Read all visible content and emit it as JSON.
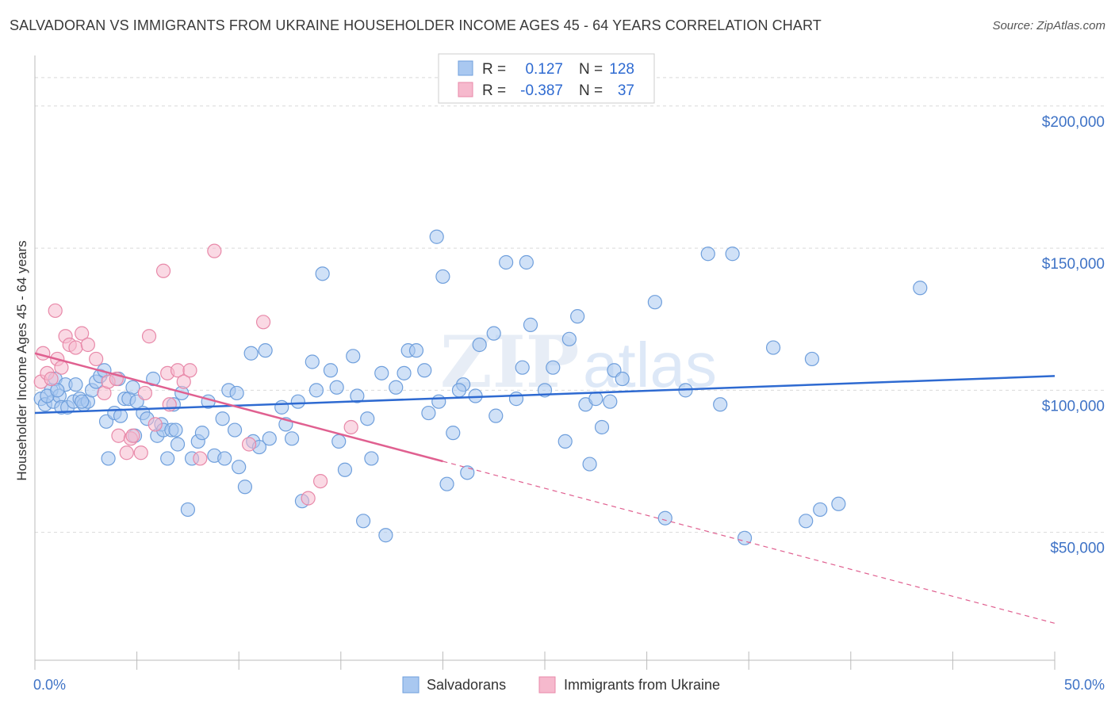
{
  "title": "SALVADORAN VS IMMIGRANTS FROM UKRAINE HOUSEHOLDER INCOME AGES 45 - 64 YEARS CORRELATION CHART",
  "source": "Source: ZipAtlas.com",
  "colors": {
    "blue_fill": "#a9c8f0",
    "blue_stroke": "#6f9fdc",
    "blue_line": "#2e6ad1",
    "pink_fill": "#f6b9cd",
    "pink_stroke": "#e889a9",
    "pink_line": "#e06090",
    "grid": "#d9d9d9",
    "tick_text": "#3f73c6"
  },
  "legend_box": {
    "rows": [
      {
        "r_label": "R =",
        "r_value": "0.127",
        "n_label": "N =",
        "n_value": "128",
        "color": "blue"
      },
      {
        "r_label": "R =",
        "r_value": "-0.387",
        "n_label": "N =",
        "n_value": "37",
        "color": "pink"
      }
    ]
  },
  "bottom_legend": [
    {
      "label": "Salvadorans",
      "color": "blue"
    },
    {
      "label": "Immigrants from Ukraine",
      "color": "pink"
    }
  ],
  "watermark": "ZIPatlas",
  "chart_data": {
    "type": "scatter",
    "ylabel": "Householder Income Ages 45 - 64 years",
    "xlim": [
      0,
      50
    ],
    "ylim": [
      5000,
      215000
    ],
    "x_tick_labels": [
      {
        "value": 0,
        "label": "0.0%"
      },
      {
        "value": 50,
        "label": "50.0%"
      }
    ],
    "y_ticks": [
      {
        "value": 50000,
        "label": "$50,000"
      },
      {
        "value": 100000,
        "label": "$100,000"
      },
      {
        "value": 150000,
        "label": "$150,000"
      },
      {
        "value": 200000,
        "label": "$200,000"
      }
    ],
    "grid": "horizontal dashed",
    "series": [
      {
        "name": "Salvadorans",
        "color": "blue",
        "trend": {
          "x0": 0,
          "y0": 92000,
          "x1": 50,
          "y1": 105000
        },
        "points": [
          [
            0.3,
            97000
          ],
          [
            0.5,
            95000
          ],
          [
            0.8,
            100000
          ],
          [
            0.9,
            96000
          ],
          [
            1.0,
            104000
          ],
          [
            1.2,
            98000
          ],
          [
            1.3,
            94000
          ],
          [
            1.5,
            102000
          ],
          [
            1.6,
            94000
          ],
          [
            1.9,
            96000
          ],
          [
            2.0,
            102000
          ],
          [
            2.2,
            97000
          ],
          [
            2.4,
            95000
          ],
          [
            2.6,
            96000
          ],
          [
            2.8,
            100000
          ],
          [
            3.0,
            103000
          ],
          [
            3.2,
            105000
          ],
          [
            3.4,
            107000
          ],
          [
            3.5,
            89000
          ],
          [
            3.6,
            76000
          ],
          [
            3.9,
            92000
          ],
          [
            4.1,
            104000
          ],
          [
            4.2,
            91000
          ],
          [
            4.4,
            97000
          ],
          [
            4.6,
            97000
          ],
          [
            4.8,
            101000
          ],
          [
            4.9,
            84000
          ],
          [
            5.0,
            96000
          ],
          [
            5.3,
            92000
          ],
          [
            5.5,
            90000
          ],
          [
            5.8,
            104000
          ],
          [
            6.0,
            84000
          ],
          [
            6.2,
            88000
          ],
          [
            6.3,
            86000
          ],
          [
            6.5,
            76000
          ],
          [
            6.7,
            86000
          ],
          [
            6.9,
            86000
          ],
          [
            7.0,
            81000
          ],
          [
            7.2,
            99000
          ],
          [
            7.5,
            58000
          ],
          [
            7.7,
            76000
          ],
          [
            8.0,
            82000
          ],
          [
            8.2,
            85000
          ],
          [
            8.5,
            96000
          ],
          [
            8.8,
            77000
          ],
          [
            9.2,
            90000
          ],
          [
            9.3,
            76000
          ],
          [
            9.5,
            100000
          ],
          [
            9.8,
            86000
          ],
          [
            10.0,
            73000
          ],
          [
            10.3,
            66000
          ],
          [
            10.6,
            113000
          ],
          [
            10.7,
            82000
          ],
          [
            11.0,
            80000
          ],
          [
            11.3,
            114000
          ],
          [
            11.5,
            83000
          ],
          [
            12.1,
            94000
          ],
          [
            12.3,
            88000
          ],
          [
            12.6,
            83000
          ],
          [
            13.1,
            61000
          ],
          [
            13.6,
            110000
          ],
          [
            13.8,
            100000
          ],
          [
            14.1,
            141000
          ],
          [
            14.5,
            107000
          ],
          [
            14.8,
            101000
          ],
          [
            14.9,
            82000
          ],
          [
            15.2,
            72000
          ],
          [
            15.6,
            112000
          ],
          [
            15.8,
            98000
          ],
          [
            16.1,
            54000
          ],
          [
            16.3,
            90000
          ],
          [
            16.5,
            76000
          ],
          [
            17.0,
            106000
          ],
          [
            17.2,
            49000
          ],
          [
            17.7,
            101000
          ],
          [
            18.1,
            106000
          ],
          [
            18.3,
            114000
          ],
          [
            18.7,
            114000
          ],
          [
            19.1,
            107000
          ],
          [
            19.3,
            92000
          ],
          [
            19.7,
            154000
          ],
          [
            19.8,
            96000
          ],
          [
            20.0,
            140000
          ],
          [
            20.2,
            67000
          ],
          [
            20.5,
            85000
          ],
          [
            21.0,
            102000
          ],
          [
            21.2,
            71000
          ],
          [
            21.6,
            98000
          ],
          [
            21.8,
            116000
          ],
          [
            22.5,
            120000
          ],
          [
            22.6,
            91000
          ],
          [
            23.1,
            145000
          ],
          [
            23.6,
            97000
          ],
          [
            23.9,
            108000
          ],
          [
            24.1,
            145000
          ],
          [
            24.3,
            123000
          ],
          [
            25.0,
            100000
          ],
          [
            25.4,
            108000
          ],
          [
            26.0,
            82000
          ],
          [
            26.2,
            118000
          ],
          [
            26.6,
            126000
          ],
          [
            27.0,
            95000
          ],
          [
            27.2,
            74000
          ],
          [
            27.8,
            87000
          ],
          [
            28.2,
            96000
          ],
          [
            28.4,
            107000
          ],
          [
            28.8,
            104000
          ],
          [
            30.4,
            131000
          ],
          [
            30.9,
            55000
          ],
          [
            31.9,
            100000
          ],
          [
            33.0,
            148000
          ],
          [
            34.2,
            148000
          ],
          [
            34.8,
            48000
          ],
          [
            36.2,
            115000
          ],
          [
            37.8,
            54000
          ],
          [
            38.1,
            111000
          ],
          [
            38.5,
            58000
          ],
          [
            39.4,
            60000
          ],
          [
            43.4,
            136000
          ],
          [
            0.6,
            98000
          ],
          [
            1.1,
            100000
          ],
          [
            2.3,
            96000
          ],
          [
            6.8,
            95000
          ],
          [
            9.9,
            99000
          ],
          [
            12.9,
            96000
          ],
          [
            20.8,
            100000
          ],
          [
            27.5,
            97000
          ],
          [
            33.6,
            95000
          ]
        ]
      },
      {
        "name": "Immigrants from Ukraine",
        "color": "pink",
        "trend": {
          "x0": 0,
          "y0": 113000,
          "x1": 50,
          "y1": 18000,
          "solid_until_x": 20
        },
        "points": [
          [
            0.3,
            103000
          ],
          [
            0.4,
            113000
          ],
          [
            0.6,
            106000
          ],
          [
            0.8,
            104000
          ],
          [
            1.0,
            128000
          ],
          [
            1.1,
            111000
          ],
          [
            1.3,
            108000
          ],
          [
            1.5,
            119000
          ],
          [
            1.7,
            116000
          ],
          [
            2.0,
            115000
          ],
          [
            2.3,
            120000
          ],
          [
            2.6,
            116000
          ],
          [
            3.0,
            111000
          ],
          [
            3.4,
            99000
          ],
          [
            3.6,
            103000
          ],
          [
            4.0,
            104000
          ],
          [
            4.1,
            84000
          ],
          [
            4.5,
            78000
          ],
          [
            4.7,
            83000
          ],
          [
            4.8,
            84000
          ],
          [
            5.2,
            78000
          ],
          [
            5.4,
            99000
          ],
          [
            5.6,
            119000
          ],
          [
            5.9,
            88000
          ],
          [
            6.3,
            142000
          ],
          [
            6.5,
            106000
          ],
          [
            6.6,
            95000
          ],
          [
            7.0,
            107000
          ],
          [
            7.3,
            103000
          ],
          [
            7.6,
            107000
          ],
          [
            8.1,
            76000
          ],
          [
            8.8,
            149000
          ],
          [
            10.5,
            81000
          ],
          [
            11.2,
            124000
          ],
          [
            13.4,
            62000
          ],
          [
            14.0,
            68000
          ],
          [
            15.5,
            87000
          ]
        ]
      }
    ]
  }
}
